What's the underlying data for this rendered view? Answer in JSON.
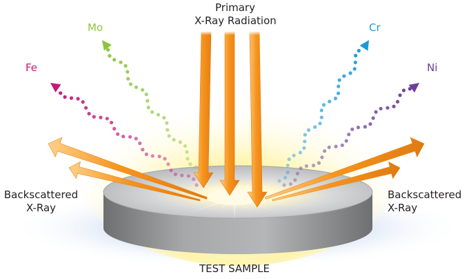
{
  "title": "",
  "labels": {
    "primary_line1": "Primary",
    "primary_line2": "X-Ray Radiation",
    "back_left_line1": "Backscattered",
    "back_left_line2": "X-Ray",
    "back_right_line1": "Backscattered",
    "back_right_line2": "X-Ray",
    "sample": "TEST SAMPLE"
  },
  "elements": [
    {
      "symbol": "Fe",
      "color": "#c4197a"
    },
    {
      "symbol": "Mo",
      "color": "#8dc63f"
    },
    {
      "symbol": "Cr",
      "color": "#1a9bd7"
    },
    {
      "symbol": "Ni",
      "color": "#6b3f98"
    }
  ],
  "colors": {
    "beam": "#f7941d",
    "beam_dark": "#d46a0c",
    "sample_side": "#8f9092",
    "sample_top": "#c9cacc",
    "glow": "#fff3a0",
    "base_glow": "#dfe8f6"
  }
}
